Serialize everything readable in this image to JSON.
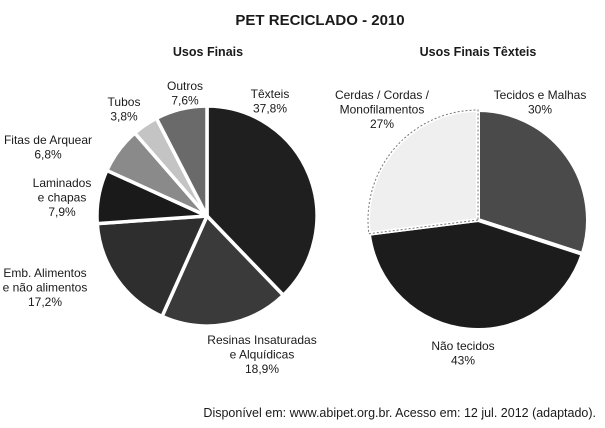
{
  "title": "PET RECICLADO - 2010",
  "source": "Disponível em: www.abipet.org.br. Acesso em: 12 jul. 2012 (adaptado).",
  "chart_data": [
    {
      "type": "pie",
      "title": "Usos Finais",
      "slices": [
        {
          "label": [
            "Têxteis"
          ],
          "value": 37.8,
          "value_text": "37,8%",
          "color": "#1f1f1f"
        },
        {
          "label": [
            "Resinas Insaturadas",
            "e Alquídicas"
          ],
          "value": 18.9,
          "value_text": "18,9%",
          "color": "#3a3a3a"
        },
        {
          "label": [
            "Emb. Alimentos",
            "e não alimentos"
          ],
          "value": 17.2,
          "value_text": "17,2%",
          "color": "#2e2e2e"
        },
        {
          "label": [
            "Laminados",
            "e chapas"
          ],
          "value": 7.9,
          "value_text": "7,9%",
          "color": "#1a1a1a"
        },
        {
          "label": [
            "Fitas de Arquear"
          ],
          "value": 6.8,
          "value_text": "6,8%",
          "color": "#8a8a8a"
        },
        {
          "label": [
            "Tubos"
          ],
          "value": 3.8,
          "value_text": "3,8%",
          "color": "#c4c4c4"
        },
        {
          "label": [
            "Outros"
          ],
          "value": 7.6,
          "value_text": "7,6%",
          "color": "#6a6a6a"
        }
      ]
    },
    {
      "type": "pie",
      "title": "Usos Finais Têxteis",
      "slices": [
        {
          "label": [
            "Tecidos e Malhas"
          ],
          "value": 30,
          "value_text": "30%",
          "color": "#4a4a4a"
        },
        {
          "label": [
            "Não tecidos"
          ],
          "value": 43,
          "value_text": "43%",
          "color": "#1c1c1c"
        },
        {
          "label": [
            "Cerdas / Cordas /",
            "Monofilamentos"
          ],
          "value": 27,
          "value_text": "27%",
          "color": "#efefef"
        }
      ]
    }
  ]
}
